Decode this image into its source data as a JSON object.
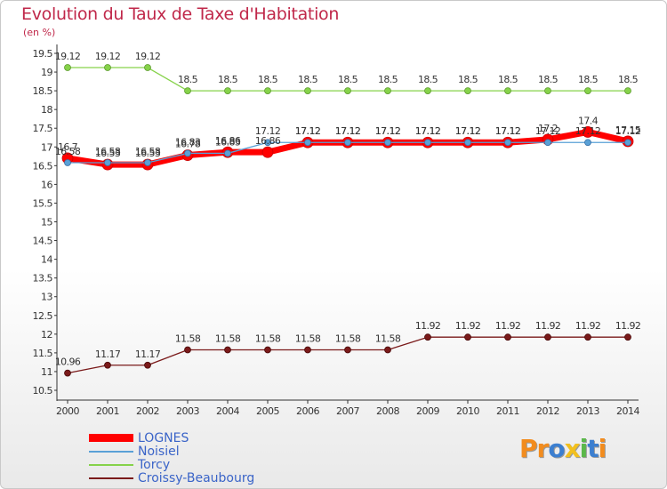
{
  "chart_data": {
    "type": "line",
    "title": "Evolution du Taux de Taxe d'Habitation",
    "subtitle": "(en %)",
    "x": [
      "2000",
      "2001",
      "2002",
      "2003",
      "2004",
      "2005",
      "2006",
      "2007",
      "2008",
      "2009",
      "2010",
      "2011",
      "2012",
      "2013",
      "2014"
    ],
    "yticks": [
      "10.5",
      "11",
      "11.5",
      "12",
      "12.5",
      "13",
      "13.5",
      "14",
      "14.5",
      "15",
      "15.5",
      "16",
      "16.5",
      "17",
      "17.5",
      "18",
      "18.5",
      "19",
      "19.5"
    ],
    "ylim": [
      10.5,
      19.5
    ],
    "grid": false,
    "legend_position": "bottom-left",
    "series": [
      {
        "name": "LOGNES",
        "color": "#ff0000",
        "values": [
          16.7,
          16.53,
          16.53,
          16.78,
          16.86,
          16.86,
          17.12,
          17.12,
          17.12,
          17.12,
          17.12,
          17.12,
          17.2,
          17.4,
          17.15
        ]
      },
      {
        "name": "Noisiel",
        "color": "#5aa0d6",
        "values": [
          16.58,
          16.58,
          16.58,
          16.83,
          16.83,
          17.12,
          17.12,
          17.12,
          17.12,
          17.12,
          17.12,
          17.12,
          17.12,
          17.12,
          17.12
        ]
      },
      {
        "name": "Torcy",
        "color": "#86d24a",
        "values": [
          19.12,
          19.12,
          19.12,
          18.5,
          18.5,
          18.5,
          18.5,
          18.5,
          18.5,
          18.5,
          18.5,
          18.5,
          18.5,
          18.5,
          18.5
        ]
      },
      {
        "name": "Croissy-Beaubourg",
        "color": "#7a1a1a",
        "values": [
          10.96,
          11.17,
          11.17,
          11.58,
          11.58,
          11.58,
          11.58,
          11.58,
          11.58,
          11.92,
          11.92,
          11.92,
          11.92,
          11.92,
          11.92
        ]
      }
    ]
  },
  "logo": {
    "text": "Proxiti",
    "letters": [
      "P",
      "r",
      "o",
      "x",
      "i",
      "t",
      "i"
    ],
    "colors": [
      "#f28c1e",
      "#f28c1e",
      "#3c7fd0",
      "#f2c01e",
      "#5bb84a",
      "#3c7fd0",
      "#f28c1e"
    ]
  }
}
